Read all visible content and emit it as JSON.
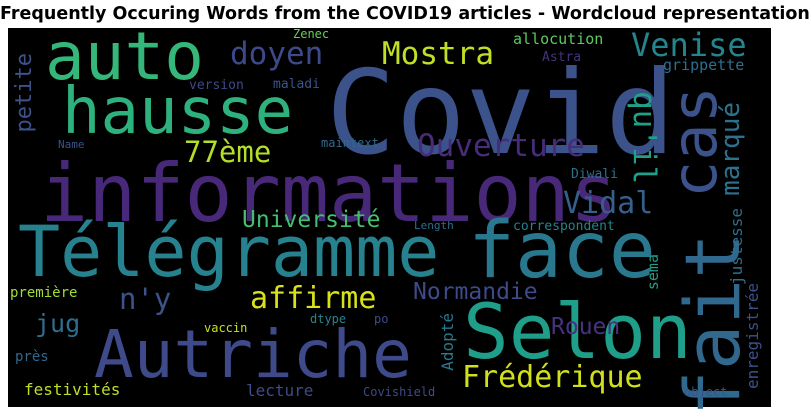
{
  "title": "Frequently Occuring Words from the COVID19 articles - Wordcloud representation",
  "words": [
    {
      "text": "Covid",
      "color": "#3b528b"
    },
    {
      "text": "informations",
      "color": "#482878"
    },
    {
      "text": "Télégramme",
      "color": "#26828e"
    },
    {
      "text": "face",
      "color": "#2a788e"
    },
    {
      "text": "fait",
      "color": "#31688e"
    },
    {
      "text": "Selon",
      "color": "#1f9e89"
    },
    {
      "text": "Autriche",
      "color": "#3e4a89"
    },
    {
      "text": "auto",
      "color": "#35b779"
    },
    {
      "text": "hausse",
      "color": "#2db27d"
    },
    {
      "text": "cas",
      "color": "#3b528b"
    },
    {
      "text": "doyen",
      "color": "#3e4989"
    },
    {
      "text": "Mostra",
      "color": "#c2df23"
    },
    {
      "text": "Venise",
      "color": "#25858e"
    },
    {
      "text": "Ouverture",
      "color": "#472c7a"
    },
    {
      "text": "qu'il",
      "color": "#1fa088"
    },
    {
      "text": "77ème",
      "color": "#b5de2b"
    },
    {
      "text": "marqué",
      "color": "#2c728e"
    },
    {
      "text": "Vidal",
      "color": "#355f8d"
    },
    {
      "text": "Université",
      "color": "#44bf70"
    },
    {
      "text": "affirme",
      "color": "#d8e219"
    },
    {
      "text": "n'y",
      "color": "#3b528b"
    },
    {
      "text": "Normandie",
      "color": "#3e4a89"
    },
    {
      "text": "Rouen",
      "color": "#46327e"
    },
    {
      "text": "jug",
      "color": "#2e6e8e"
    },
    {
      "text": "Frédérique",
      "color": "#d0e11c"
    },
    {
      "text": "Adopté",
      "color": "#2a788e"
    },
    {
      "text": "justesse",
      "color": "#2e6e8e"
    },
    {
      "text": "enregistrée",
      "color": "#3b528b"
    },
    {
      "text": "sema",
      "color": "#1fa088"
    },
    {
      "text": "petite",
      "color": "#3b528b"
    },
    {
      "text": "allocution",
      "color": "#5ec962"
    },
    {
      "text": "grippette",
      "color": "#2e6e8e"
    },
    {
      "text": "Astra",
      "color": "#46327e"
    },
    {
      "text": "version",
      "color": "#3e4a89"
    },
    {
      "text": "maladi",
      "color": "#3b528b"
    },
    {
      "text": "Zenec",
      "color": "#6ccd5a"
    },
    {
      "text": "Name",
      "color": "#3b528b"
    },
    {
      "text": "maintext",
      "color": "#31688e"
    },
    {
      "text": "Diwali",
      "color": "#2e6e8e"
    },
    {
      "text": "Length",
      "color": "#2e6e8e"
    },
    {
      "text": "correspondent",
      "color": "#26828e"
    },
    {
      "text": "première",
      "color": "#a2da37"
    },
    {
      "text": "vaccin",
      "color": "#c8e020"
    },
    {
      "text": "dtype",
      "color": "#25858e"
    },
    {
      "text": "po",
      "color": "#3e4a89"
    },
    {
      "text": "près",
      "color": "#31688e"
    },
    {
      "text": "festivités",
      "color": "#bddf26"
    },
    {
      "text": "lecture",
      "color": "#3e4a89"
    },
    {
      "text": "Covishield",
      "color": "#3e4a89"
    },
    {
      "text": "object",
      "color": "#3b528b"
    }
  ]
}
